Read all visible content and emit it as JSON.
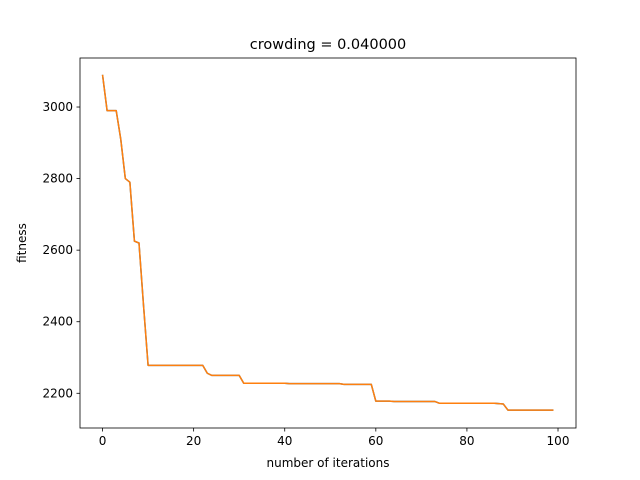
{
  "chart_data": {
    "type": "line",
    "title": "crowding = 0.040000",
    "xlabel": "number of iterations",
    "ylabel": "fitness",
    "xlim": [
      -4.95,
      103.95
    ],
    "ylim": [
      2103,
      3137
    ],
    "xticks": [
      0,
      20,
      40,
      60,
      80,
      100
    ],
    "yticks": [
      2200,
      2400,
      2600,
      2800,
      3000
    ],
    "grid": false,
    "legend": "none",
    "series": [
      {
        "color": "#1f77b4",
        "x": [
          0,
          1,
          2,
          3,
          4,
          5,
          6,
          7,
          8,
          9,
          10,
          11,
          12,
          13,
          14,
          15,
          16,
          17,
          18,
          19,
          20,
          21,
          22,
          23,
          24,
          25,
          26,
          27,
          28,
          29,
          30,
          31,
          32,
          33,
          34,
          35,
          36,
          37,
          38,
          39,
          40,
          41,
          42,
          43,
          44,
          45,
          46,
          47,
          48,
          49,
          50,
          51,
          52,
          53,
          54,
          55,
          56,
          57,
          58,
          59,
          60,
          61,
          62,
          63,
          64,
          65,
          66,
          67,
          68,
          69,
          70,
          71,
          72,
          73,
          74,
          75,
          76,
          77,
          78,
          79,
          80,
          81,
          82,
          83,
          84,
          85,
          86,
          87,
          88,
          89,
          90,
          91,
          92,
          93,
          94,
          95,
          96,
          97,
          98,
          99
        ],
        "y": [
          3090,
          2990,
          2990,
          2990,
          2910,
          2800,
          2790,
          2625,
          2620,
          2445,
          2278,
          2278,
          2278,
          2278,
          2278,
          2278,
          2278,
          2278,
          2278,
          2278,
          2278,
          2278,
          2278,
          2256,
          2250,
          2250,
          2250,
          2250,
          2250,
          2250,
          2250,
          2228,
          2228,
          2228,
          2228,
          2228,
          2228,
          2228,
          2228,
          2228,
          2228,
          2227,
          2227,
          2227,
          2227,
          2227,
          2227,
          2227,
          2227,
          2227,
          2227,
          2227,
          2227,
          2225,
          2225,
          2225,
          2225,
          2225,
          2225,
          2225,
          2178,
          2178,
          2178,
          2178,
          2177,
          2177,
          2177,
          2177,
          2177,
          2177,
          2177,
          2177,
          2177,
          2177,
          2172,
          2172,
          2172,
          2172,
          2172,
          2172,
          2172,
          2172,
          2172,
          2172,
          2172,
          2172,
          2172,
          2171,
          2170,
          2153,
          2153,
          2153,
          2153,
          2153,
          2153,
          2153,
          2153,
          2153,
          2153,
          2153
        ]
      },
      {
        "color": "#ff7f0e",
        "x": [
          0,
          1,
          2,
          3,
          4,
          5,
          6,
          7,
          8,
          9,
          10,
          11,
          12,
          13,
          14,
          15,
          16,
          17,
          18,
          19,
          20,
          21,
          22,
          23,
          24,
          25,
          26,
          27,
          28,
          29,
          30,
          31,
          32,
          33,
          34,
          35,
          36,
          37,
          38,
          39,
          40,
          41,
          42,
          43,
          44,
          45,
          46,
          47,
          48,
          49,
          50,
          51,
          52,
          53,
          54,
          55,
          56,
          57,
          58,
          59,
          60,
          61,
          62,
          63,
          64,
          65,
          66,
          67,
          68,
          69,
          70,
          71,
          72,
          73,
          74,
          75,
          76,
          77,
          78,
          79,
          80,
          81,
          82,
          83,
          84,
          85,
          86,
          87,
          88,
          89,
          90,
          91,
          92,
          93,
          94,
          95,
          96,
          97,
          98,
          99
        ],
        "y": [
          3090,
          2990,
          2990,
          2990,
          2910,
          2800,
          2790,
          2625,
          2620,
          2445,
          2278,
          2278,
          2278,
          2278,
          2278,
          2278,
          2278,
          2278,
          2278,
          2278,
          2278,
          2278,
          2278,
          2256,
          2250,
          2250,
          2250,
          2250,
          2250,
          2250,
          2250,
          2228,
          2228,
          2228,
          2228,
          2228,
          2228,
          2228,
          2228,
          2228,
          2228,
          2227,
          2227,
          2227,
          2227,
          2227,
          2227,
          2227,
          2227,
          2227,
          2227,
          2227,
          2227,
          2225,
          2225,
          2225,
          2225,
          2225,
          2225,
          2225,
          2178,
          2178,
          2178,
          2178,
          2177,
          2177,
          2177,
          2177,
          2177,
          2177,
          2177,
          2177,
          2177,
          2177,
          2172,
          2172,
          2172,
          2172,
          2172,
          2172,
          2172,
          2172,
          2172,
          2172,
          2172,
          2172,
          2172,
          2171,
          2170,
          2153,
          2153,
          2153,
          2153,
          2153,
          2153,
          2153,
          2153,
          2153,
          2153,
          2153
        ]
      }
    ]
  }
}
